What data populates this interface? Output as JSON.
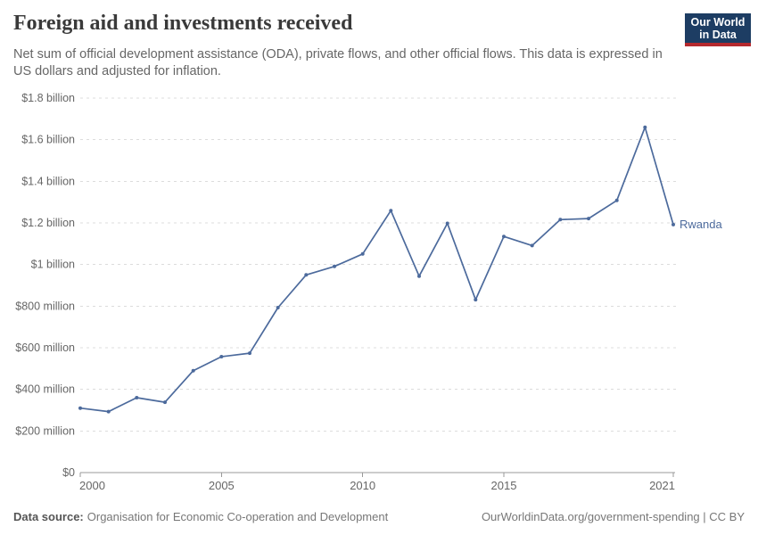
{
  "header": {
    "title": "Foreign aid and investments received",
    "subtitle": "Net sum of official development assistance (ODA), private flows, and other official flows. This data is expressed in US dollars and adjusted for inflation.",
    "logo": {
      "line1": "Our World",
      "line2": "in Data",
      "bg_color": "#1d3d63",
      "bar_color": "#b5292e"
    }
  },
  "chart_data": {
    "type": "line",
    "title": "Foreign aid and investments received",
    "entity": "Rwanda",
    "x": [
      2000,
      2001,
      2002,
      2003,
      2004,
      2005,
      2006,
      2007,
      2008,
      2009,
      2010,
      2011,
      2012,
      2013,
      2014,
      2015,
      2016,
      2017,
      2018,
      2019,
      2020,
      2021
    ],
    "values_millions": [
      310,
      293,
      360,
      338,
      490,
      557,
      574,
      793,
      950,
      991,
      1051,
      1259,
      944,
      1198,
      831,
      1135,
      1091,
      1216,
      1221,
      1308,
      1660,
      1192
    ],
    "xlim": [
      2000,
      2021
    ],
    "ylim_millions": [
      0,
      1800
    ],
    "x_tick_labels": [
      "2000",
      "2005",
      "2010",
      "2015",
      "2021"
    ],
    "y_ticks": [
      {
        "value": 0,
        "label": "$0"
      },
      {
        "value": 200,
        "label": "$200 million"
      },
      {
        "value": 400,
        "label": "$400 million"
      },
      {
        "value": 600,
        "label": "$600 million"
      },
      {
        "value": 800,
        "label": "$800 million"
      },
      {
        "value": 1000,
        "label": "$1 billion"
      },
      {
        "value": 1200,
        "label": "$1.2 billion"
      },
      {
        "value": 1400,
        "label": "$1.4 billion"
      },
      {
        "value": 1600,
        "label": "$1.6 billion"
      },
      {
        "value": 1800,
        "label": "$1.8 billion"
      }
    ],
    "grid": true,
    "legend_position": "end-of-line",
    "line_color": "#4c6a9c",
    "grid_color": "#dcdcdc",
    "axis_color": "#999999",
    "label_color": "#666666"
  },
  "footer": {
    "source_label": "Data source:",
    "source": "Organisation for Economic Co-operation and Development",
    "note_right": "OurWorldinData.org/government-spending | CC BY"
  }
}
